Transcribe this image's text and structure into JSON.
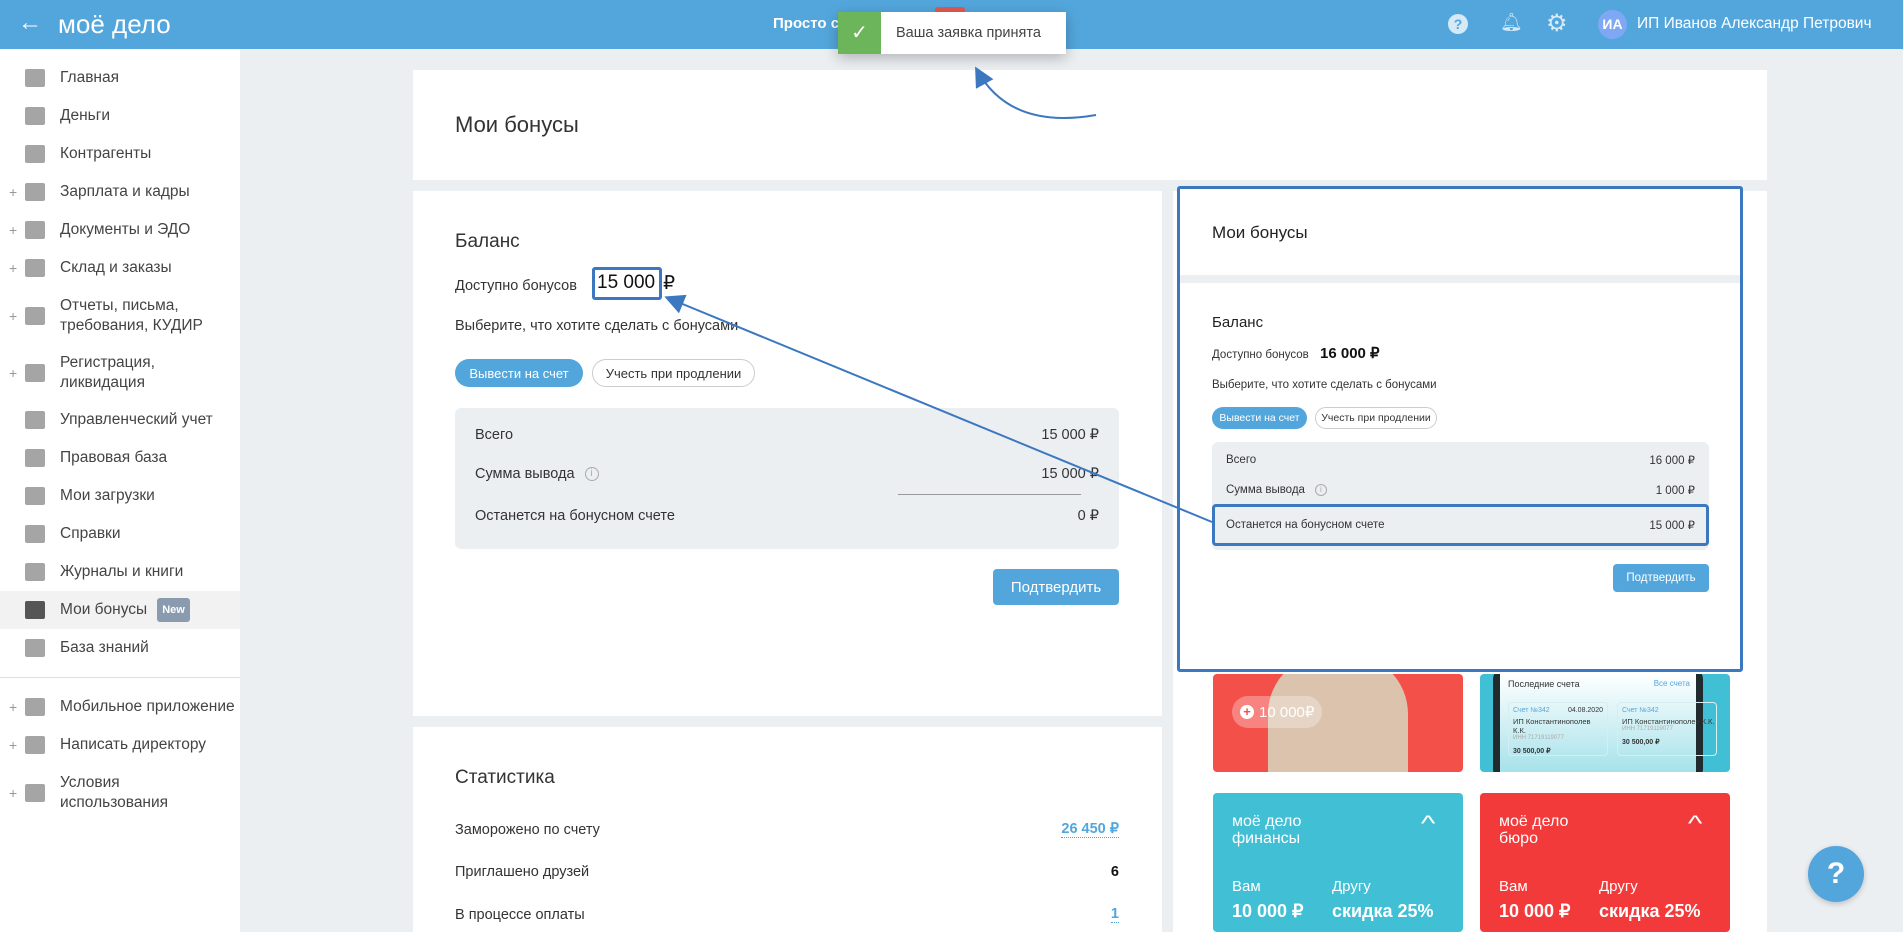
{
  "header": {
    "logo": "моё дело",
    "center_text": "Просто с",
    "user_initials": "ИА",
    "user_name": "ИП Иванов Александр Петрович"
  },
  "toast": {
    "message": "Ваша заявка принята",
    "color": "#6db55a"
  },
  "sidebar": {
    "items": [
      {
        "label": "Главная",
        "icon": "home-icon",
        "plus": false
      },
      {
        "label": "Деньги",
        "icon": "money-icon",
        "plus": false
      },
      {
        "label": "Контрагенты",
        "icon": "contractor-icon",
        "plus": false
      },
      {
        "label": "Зарплата и кадры",
        "icon": "wallet-icon",
        "plus": true
      },
      {
        "label": "Документы и ЭДО",
        "icon": "folder-icon",
        "plus": true
      },
      {
        "label": "Склад и заказы",
        "icon": "warehouse-icon",
        "plus": true
      },
      {
        "label": "Отчеты, письма, требования, КУДИР",
        "icon": "report-icon",
        "plus": true
      },
      {
        "label": "Регистрация, ликвидация",
        "icon": "registration-icon",
        "plus": true
      },
      {
        "label": "Управленческий учет",
        "icon": "management-icon",
        "plus": false
      },
      {
        "label": "Правовая база",
        "icon": "briefcase-icon",
        "plus": false
      },
      {
        "label": "Мои загрузки",
        "icon": "folder-icon",
        "plus": false
      },
      {
        "label": "Справки",
        "icon": "briefcase-icon",
        "plus": false
      },
      {
        "label": "Журналы и книги",
        "icon": "book-icon",
        "plus": false
      },
      {
        "label": "Мои бонусы",
        "icon": "gift-icon",
        "plus": false,
        "badge": "New"
      },
      {
        "label": "База знаний",
        "icon": "graduation-cap-icon",
        "plus": false
      }
    ],
    "bottom_items": [
      {
        "label": "Мобильное приложение",
        "icon": "mobile-icon",
        "plus": true
      },
      {
        "label": "Написать директору",
        "icon": "chat-icon",
        "plus": true
      },
      {
        "label": "Условия использования",
        "icon": "more-icon",
        "plus": true
      }
    ]
  },
  "page": {
    "title": "Мои бонусы"
  },
  "balance": {
    "title": "Баланс",
    "available_label": "Доступно бонусов",
    "available_value": "15 000",
    "currency": "₽",
    "choose_text": "Выберите, что хотите сделать с бонусами",
    "btn_withdraw": "Вывести на счет",
    "btn_renewal": "Учесть при продлении",
    "rows": [
      {
        "label": "Всего",
        "value": "15 000  ₽"
      },
      {
        "label": "Сумма вывода",
        "value": "15 000  ₽"
      },
      {
        "label": "Останется на бонусном счете",
        "value": "0  ₽"
      }
    ],
    "confirm": "Подтвердить"
  },
  "stats": {
    "title": "Статистика",
    "rows": [
      {
        "label": "Заморожено по счету",
        "value": "26 450 ₽"
      },
      {
        "label": "Приглашено друзей",
        "value": "6"
      },
      {
        "label": "В процессе оплаты",
        "value": "1"
      }
    ]
  },
  "overlay": {
    "title": "Мои бонусы",
    "balance_title": "Баланс",
    "available_label": "Доступно бонусов",
    "available_value": "16 000 ₽",
    "choose_text": "Выберите, что хотите сделать с бонусами",
    "btn_withdraw": "Вывести на счет",
    "btn_renewal": "Учесть при продлении",
    "rows": [
      {
        "label": "Всего",
        "value": "16 000  ₽"
      },
      {
        "label": "Сумма вывода",
        "value": "1 000  ₽"
      },
      {
        "label": "Останется на бонусном счете",
        "value": "15 000  ₽"
      }
    ],
    "confirm": "Подтвердить"
  },
  "promo": {
    "bonus_pill": "10 000₽",
    "invoices_title": "Последние счета",
    "invoices_all": "Все счета",
    "invoice_no": "Счет №342",
    "invoice_date": "04.08.2020",
    "invoice_company": "ИП Константинополев К.К.",
    "invoice_inn": "ИНН 71719119077",
    "invoice_amount": "30 500,00 ₽"
  },
  "referral": [
    {
      "brand": "моё дело",
      "product": "финансы",
      "you_label": "Вам",
      "you_value": "10 000 ₽",
      "friend_label": "Другу",
      "friend_value": "скидка 25%",
      "color": "#41bfd5"
    },
    {
      "brand": "моё дело",
      "product": "бюро",
      "you_label": "Вам",
      "you_value": "10 000 ₽",
      "friend_label": "Другу",
      "friend_value": "скидка 25%",
      "color": "#f23a3b"
    }
  ],
  "colors": {
    "header": "#53a6dc",
    "annotation": "#3b78c0"
  }
}
